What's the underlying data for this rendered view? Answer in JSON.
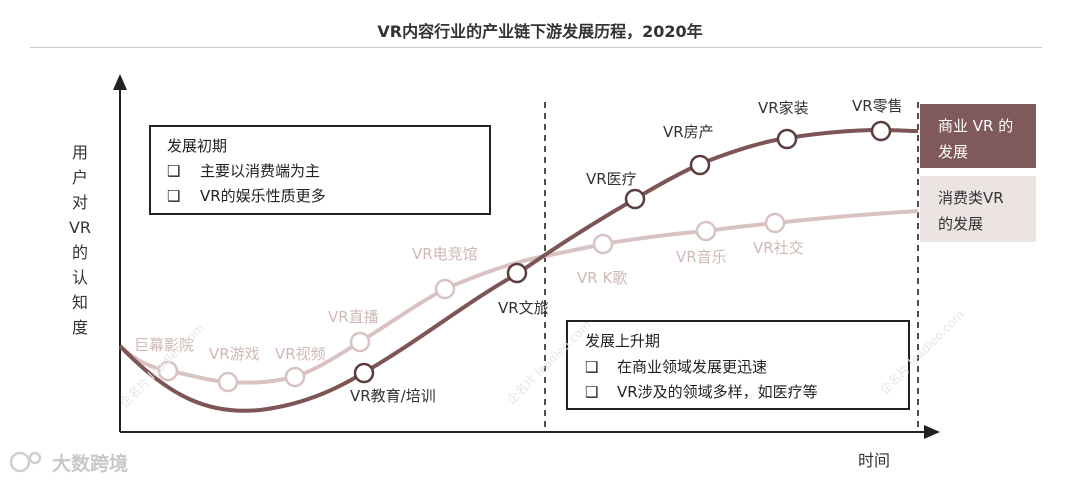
{
  "title": "VR内容行业的产业链下游发展历程，2020年",
  "axes": {
    "ylabel": "用户对VR的认知度",
    "xlabel": "时间"
  },
  "boxes": {
    "early": {
      "title": "发展初期",
      "items": [
        "主要以消费端为主",
        "VR的娱乐性质更多"
      ]
    },
    "rise": {
      "title": "发展上升期",
      "items": [
        "在商业领域发展更迅速",
        "VR涉及的领域多样，如医疗等"
      ]
    }
  },
  "legend": {
    "commercial": {
      "text": "商业 VR 的\n发展",
      "color": "#80595a",
      "text_color": "#ffffff"
    },
    "consumer": {
      "text": "消费类VR\n的发展",
      "color": "#ece3e3",
      "text_color": "#333333"
    }
  },
  "watermark": {
    "brand": "大数跨境",
    "site": "企名片 leadleo.com"
  },
  "chart_data": {
    "type": "line",
    "title": "VR内容行业的产业链下游发展历程，2020年",
    "xlabel": "时间",
    "ylabel": "用户对VR的认知度",
    "stages": [
      "发展初期",
      "发展上升期"
    ],
    "series": [
      {
        "name": "商业VR的发展",
        "color": "#80595a",
        "points": [
          {
            "label": "VR教育/培训"
          },
          {
            "label": "VR文旅"
          },
          {
            "label": "VR医疗"
          },
          {
            "label": "VR房产"
          },
          {
            "label": "VR家装"
          },
          {
            "label": "VR零售"
          }
        ]
      },
      {
        "name": "消费类VR的发展",
        "color": "#d8c3c2",
        "points": [
          {
            "label": "巨幕影院"
          },
          {
            "label": "VR游戏"
          },
          {
            "label": "VR视频"
          },
          {
            "label": "VR直播"
          },
          {
            "label": "VR电竞馆"
          },
          {
            "label": "VR K歌"
          },
          {
            "label": "VR音乐"
          },
          {
            "label": "VR社交"
          }
        ]
      }
    ]
  }
}
